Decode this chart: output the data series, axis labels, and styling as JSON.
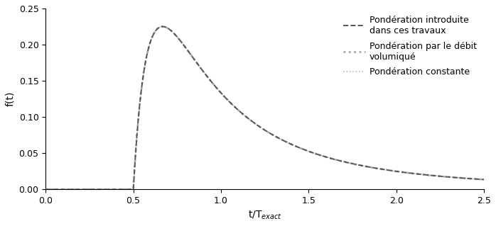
{
  "title": "",
  "xlabel": "t/T$_{exact}$",
  "ylabel": "f(t)",
  "xlim": [
    0.0,
    2.5
  ],
  "ylim": [
    0.0,
    0.25
  ],
  "xticks": [
    0.0,
    0.5,
    1.0,
    1.5,
    2.0,
    2.5
  ],
  "yticks": [
    0.0,
    0.05,
    0.1,
    0.15,
    0.2,
    0.25
  ],
  "line1_label": "Pondération introduite\ndans ces travaux",
  "line1_color": "#555555",
  "line1_style": "--",
  "line1_lw": 1.4,
  "line2_label": "Pondération par le débit\nvolumiqué",
  "line2_color": "#aaaaaa",
  "line2_style": ":",
  "line2_lw": 2.0,
  "line3_label": "Pondération constante",
  "line3_color": "#bbbbbb",
  "line3_style": ":",
  "line3_lw": 1.2,
  "legend_fontsize": 9,
  "axis_fontsize": 10,
  "tick_fontsize": 9,
  "background_color": "#ffffff"
}
